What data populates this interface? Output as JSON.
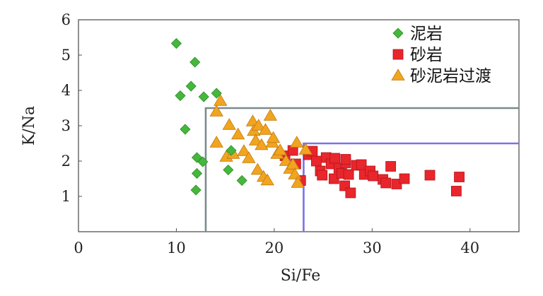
{
  "chart_data": {
    "type": "scatter",
    "title": "",
    "xlabel": "Si/Fe",
    "ylabel": "K/Na",
    "xlim": [
      0,
      45
    ],
    "ylim": [
      0,
      6
    ],
    "xticks": [
      0,
      10,
      20,
      30,
      40
    ],
    "yticks": [
      1,
      2,
      3,
      4,
      5,
      6
    ],
    "grid": false,
    "legend_position": "top-right",
    "series": [
      {
        "name": "泥岩",
        "marker": "diamond",
        "color": "#44b83a",
        "points": [
          [
            10.0,
            5.33
          ],
          [
            10.4,
            3.85
          ],
          [
            10.9,
            2.9
          ],
          [
            11.5,
            4.12
          ],
          [
            11.9,
            4.8
          ],
          [
            12.1,
            2.1
          ],
          [
            12.1,
            1.65
          ],
          [
            12.0,
            1.18
          ],
          [
            12.8,
            3.82
          ],
          [
            12.7,
            1.98
          ],
          [
            14.1,
            3.92
          ],
          [
            15.6,
            2.3
          ],
          [
            15.3,
            1.75
          ],
          [
            16.7,
            1.45
          ]
        ]
      },
      {
        "name": "砂岩",
        "marker": "square",
        "color": "#e8262c",
        "points": [
          [
            21.1,
            2.15
          ],
          [
            21.9,
            2.3
          ],
          [
            22.2,
            1.92
          ],
          [
            22.7,
            1.45
          ],
          [
            23.5,
            2.18
          ],
          [
            23.9,
            2.28
          ],
          [
            24.3,
            2.0
          ],
          [
            24.7,
            1.72
          ],
          [
            24.9,
            1.6
          ],
          [
            25.3,
            2.1
          ],
          [
            25.8,
            1.92
          ],
          [
            26.2,
            2.08
          ],
          [
            26.1,
            1.5
          ],
          [
            26.6,
            1.8
          ],
          [
            26.9,
            1.65
          ],
          [
            27.3,
            1.95
          ],
          [
            27.3,
            2.05
          ],
          [
            27.6,
            1.62
          ],
          [
            27.2,
            1.3
          ],
          [
            27.8,
            1.1
          ],
          [
            28.4,
            1.88
          ],
          [
            28.9,
            1.9
          ],
          [
            29.2,
            1.62
          ],
          [
            29.8,
            1.72
          ],
          [
            30.1,
            1.58
          ],
          [
            31.1,
            1.48
          ],
          [
            31.4,
            1.38
          ],
          [
            31.9,
            1.85
          ],
          [
            32.5,
            1.35
          ],
          [
            33.3,
            1.5
          ],
          [
            35.9,
            1.6
          ],
          [
            38.6,
            1.15
          ],
          [
            38.9,
            1.55
          ]
        ]
      },
      {
        "name": "砂泥岩过渡",
        "marker": "triangle",
        "color": "#f1a420",
        "points": [
          [
            14.1,
            2.52
          ],
          [
            14.1,
            3.4
          ],
          [
            14.5,
            3.7
          ],
          [
            15.1,
            2.12
          ],
          [
            15.4,
            3.02
          ],
          [
            15.8,
            2.2
          ],
          [
            16.3,
            2.75
          ],
          [
            16.9,
            2.28
          ],
          [
            17.4,
            2.08
          ],
          [
            17.8,
            3.12
          ],
          [
            17.9,
            2.85
          ],
          [
            18.1,
            2.58
          ],
          [
            18.4,
            3.0
          ],
          [
            18.3,
            1.75
          ],
          [
            18.7,
            2.45
          ],
          [
            18.9,
            1.55
          ],
          [
            19.1,
            2.88
          ],
          [
            19.3,
            1.45
          ],
          [
            19.6,
            3.28
          ],
          [
            19.8,
            2.52
          ],
          [
            19.9,
            2.65
          ],
          [
            20.3,
            2.2
          ],
          [
            20.6,
            2.3
          ],
          [
            21.2,
            2.0
          ],
          [
            21.6,
            1.78
          ],
          [
            21.9,
            1.9
          ],
          [
            22.1,
            1.62
          ],
          [
            22.3,
            2.52
          ],
          [
            22.4,
            1.38
          ],
          [
            23.2,
            2.32
          ]
        ]
      }
    ],
    "boxes": [
      {
        "x_from": 13,
        "y_below": 3.5,
        "color": "#7d8b8e"
      },
      {
        "x_from": 23,
        "y_below": 2.5,
        "color": "#7b72e6"
      }
    ]
  }
}
